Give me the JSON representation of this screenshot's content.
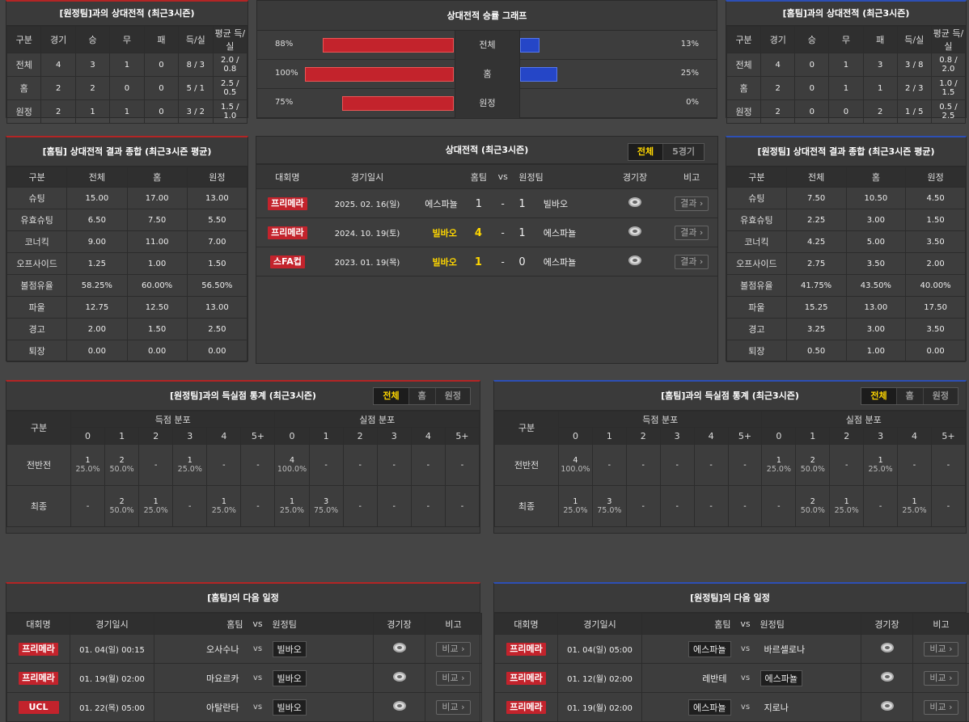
{
  "away_h2h": {
    "title": "[원정팀]과의 상대전적 (최근3시즌)",
    "headers": [
      "구분",
      "경기",
      "승",
      "무",
      "패",
      "득/실",
      "평균 득/실"
    ],
    "rows": [
      [
        "전체",
        "4",
        "3",
        "1",
        "0",
        "8 / 3",
        "2.0 / 0.8"
      ],
      [
        "홈",
        "2",
        "2",
        "0",
        "0",
        "5 / 1",
        "2.5 / 0.5"
      ],
      [
        "원정",
        "2",
        "1",
        "1",
        "0",
        "3 / 2",
        "1.5 / 1.0"
      ]
    ]
  },
  "winrate_graph": {
    "title": "상대전적 승률 그래프",
    "rows": [
      {
        "label": "전체",
        "home_pct": "88%",
        "home_value": 88,
        "away_pct": "13%",
        "away_value": 13
      },
      {
        "label": "홈",
        "home_pct": "100%",
        "home_value": 100,
        "away_pct": "25%",
        "away_value": 25
      },
      {
        "label": "원정",
        "home_pct": "75%",
        "home_value": 75,
        "away_pct": "0%",
        "away_value": 0
      }
    ],
    "home_color": "#c3232c",
    "away_color": "#2546c7"
  },
  "home_h2h": {
    "title": "[홈팀]과의 상대전적 (최근3시즌)",
    "headers": [
      "구분",
      "경기",
      "승",
      "무",
      "패",
      "득/실",
      "평균 득/실"
    ],
    "rows": [
      [
        "전체",
        "4",
        "0",
        "1",
        "3",
        "3 / 8",
        "0.8 / 2.0"
      ],
      [
        "홈",
        "2",
        "0",
        "1",
        "1",
        "2 / 3",
        "1.0 / 1.5"
      ],
      [
        "원정",
        "2",
        "0",
        "0",
        "2",
        "1 / 5",
        "0.5 / 2.5"
      ]
    ]
  },
  "home_summary": {
    "title": "[홈팀] 상대전적 결과 종합 (최근3시즌 평균)",
    "headers": [
      "구분",
      "전체",
      "홈",
      "원정"
    ],
    "rows": [
      [
        "슈팅",
        "15.00",
        "17.00",
        "13.00"
      ],
      [
        "유효슈팅",
        "6.50",
        "7.50",
        "5.50"
      ],
      [
        "코너킥",
        "9.00",
        "11.00",
        "7.00"
      ],
      [
        "오프사이드",
        "1.25",
        "1.00",
        "1.50"
      ],
      [
        "볼점유율",
        "58.25%",
        "60.00%",
        "56.50%"
      ],
      [
        "파울",
        "12.75",
        "12.50",
        "13.00"
      ],
      [
        "경고",
        "2.00",
        "1.50",
        "2.50"
      ],
      [
        "퇴장",
        "0.00",
        "0.00",
        "0.00"
      ]
    ]
  },
  "h2h_matches": {
    "title": "상대전적 (최근3시즌)",
    "tabs": [
      "전체",
      "5경기"
    ],
    "headers": {
      "league": "대회명",
      "date": "경기일시",
      "home": "홈팀",
      "vs": "vs",
      "away": "원정팀",
      "stadium": "경기장",
      "note": "비고"
    },
    "result_label": "결과 ›",
    "rows": [
      {
        "league": "프리메라",
        "date": "2025. 02. 16(일)",
        "home": "에스파뇰",
        "home_hl": false,
        "score_home": "1",
        "dash": "-",
        "score_away": "1",
        "away": "빌바오",
        "away_hl": false
      },
      {
        "league": "프리메라",
        "date": "2024. 10. 19(토)",
        "home": "빌바오",
        "home_hl": true,
        "score_home": "4",
        "dash": "-",
        "score_away": "1",
        "away": "에스파뇰",
        "away_hl": false
      },
      {
        "league": "스FA컵",
        "date": "2023. 01. 19(목)",
        "home": "빌바오",
        "home_hl": true,
        "score_home": "1",
        "dash": "-",
        "score_away": "0",
        "away": "에스파뇰",
        "away_hl": false
      }
    ]
  },
  "away_summary": {
    "title": "[원정팀] 상대전적 결과 종합 (최근3시즌 평균)",
    "headers": [
      "구분",
      "전체",
      "홈",
      "원정"
    ],
    "rows": [
      [
        "슈팅",
        "7.50",
        "10.50",
        "4.50"
      ],
      [
        "유효슈팅",
        "2.25",
        "3.00",
        "1.50"
      ],
      [
        "코너킥",
        "4.25",
        "5.00",
        "3.50"
      ],
      [
        "오프사이드",
        "2.75",
        "3.50",
        "2.00"
      ],
      [
        "볼점유율",
        "41.75%",
        "43.50%",
        "40.00%"
      ],
      [
        "파울",
        "15.25",
        "13.00",
        "17.50"
      ],
      [
        "경고",
        "3.25",
        "3.00",
        "3.50"
      ],
      [
        "퇴장",
        "0.50",
        "1.00",
        "0.00"
      ]
    ]
  },
  "away_goals": {
    "title": "[원정팀]과의 득실점 통계 (최근3시즌)",
    "tabs": [
      "전체",
      "홈",
      "원정"
    ],
    "col_label": "구분",
    "scored_label": "득점 분포",
    "conceded_label": "실점 분포",
    "buckets": [
      "0",
      "1",
      "2",
      "3",
      "4",
      "5+"
    ],
    "rows": [
      {
        "label": "전반전",
        "scored": [
          [
            "1",
            "25.0%"
          ],
          [
            "2",
            "50.0%"
          ],
          [
            "-",
            ""
          ],
          [
            "1",
            "25.0%"
          ],
          [
            "-",
            ""
          ],
          [
            "-",
            ""
          ]
        ],
        "conceded": [
          [
            "4",
            "100.0%"
          ],
          [
            "-",
            ""
          ],
          [
            "-",
            ""
          ],
          [
            "-",
            ""
          ],
          [
            "-",
            ""
          ],
          [
            "-",
            ""
          ]
        ]
      },
      {
        "label": "최종",
        "scored": [
          [
            "-",
            ""
          ],
          [
            "2",
            "50.0%"
          ],
          [
            "1",
            "25.0%"
          ],
          [
            "-",
            ""
          ],
          [
            "1",
            "25.0%"
          ],
          [
            "-",
            ""
          ]
        ],
        "conceded": [
          [
            "1",
            "25.0%"
          ],
          [
            "3",
            "75.0%"
          ],
          [
            "-",
            ""
          ],
          [
            "-",
            ""
          ],
          [
            "-",
            ""
          ],
          [
            "-",
            ""
          ]
        ]
      }
    ]
  },
  "home_goals": {
    "title": "[홈팀]과의 득실점 통계 (최근3시즌)",
    "tabs": [
      "전체",
      "홈",
      "원정"
    ],
    "col_label": "구분",
    "scored_label": "득점 분포",
    "conceded_label": "실점 분포",
    "buckets": [
      "0",
      "1",
      "2",
      "3",
      "4",
      "5+"
    ],
    "rows": [
      {
        "label": "전반전",
        "scored": [
          [
            "4",
            "100.0%"
          ],
          [
            "-",
            ""
          ],
          [
            "-",
            ""
          ],
          [
            "-",
            ""
          ],
          [
            "-",
            ""
          ],
          [
            "-",
            ""
          ]
        ],
        "conceded": [
          [
            "1",
            "25.0%"
          ],
          [
            "2",
            "50.0%"
          ],
          [
            "-",
            ""
          ],
          [
            "1",
            "25.0%"
          ],
          [
            "-",
            ""
          ],
          [
            "-",
            ""
          ]
        ]
      },
      {
        "label": "최종",
        "scored": [
          [
            "1",
            "25.0%"
          ],
          [
            "3",
            "75.0%"
          ],
          [
            "-",
            ""
          ],
          [
            "-",
            ""
          ],
          [
            "-",
            ""
          ],
          [
            "-",
            ""
          ]
        ],
        "conceded": [
          [
            "-",
            ""
          ],
          [
            "2",
            "50.0%"
          ],
          [
            "1",
            "25.0%"
          ],
          [
            "-",
            ""
          ],
          [
            "1",
            "25.0%"
          ],
          [
            "-",
            ""
          ]
        ]
      }
    ]
  },
  "home_next": {
    "title": "[홈팀]의 다음 일정",
    "headers": {
      "league": "대회명",
      "date": "경기일시",
      "home": "홈팀",
      "vs": "vs",
      "away": "원정팀",
      "stadium": "경기장",
      "note": "비고"
    },
    "compare_label": "비교 ›",
    "rows": [
      {
        "league": "프리메라",
        "date": "01. 04(일) 00:15",
        "home": "오사수나",
        "home_box": false,
        "vs": "vs",
        "away": "빌바오",
        "away_box": true
      },
      {
        "league": "프리메라",
        "date": "01. 19(월) 02:00",
        "home": "마요르카",
        "home_box": false,
        "vs": "vs",
        "away": "빌바오",
        "away_box": true
      },
      {
        "league": "UCL",
        "date": "01. 22(목) 05:00",
        "home": "아탈란타",
        "home_box": false,
        "vs": "vs",
        "away": "빌바오",
        "away_box": true
      }
    ]
  },
  "away_next": {
    "title": "[원정팀]의 다음 일정",
    "headers": {
      "league": "대회명",
      "date": "경기일시",
      "home": "홈팀",
      "vs": "vs",
      "away": "원정팀",
      "stadium": "경기장",
      "note": "비고"
    },
    "compare_label": "비교 ›",
    "rows": [
      {
        "league": "프리메라",
        "date": "01. 04(일) 05:00",
        "home": "에스파뇰",
        "home_box": true,
        "vs": "vs",
        "away": "바르셀로나",
        "away_box": false
      },
      {
        "league": "프리메라",
        "date": "01. 12(월) 02:00",
        "home": "레반테",
        "home_box": false,
        "vs": "vs",
        "away": "에스파뇰",
        "away_box": true
      },
      {
        "league": "프리메라",
        "date": "01. 19(월) 02:00",
        "home": "에스파뇰",
        "home_box": true,
        "vs": "vs",
        "away": "지로나",
        "away_box": false
      }
    ]
  }
}
